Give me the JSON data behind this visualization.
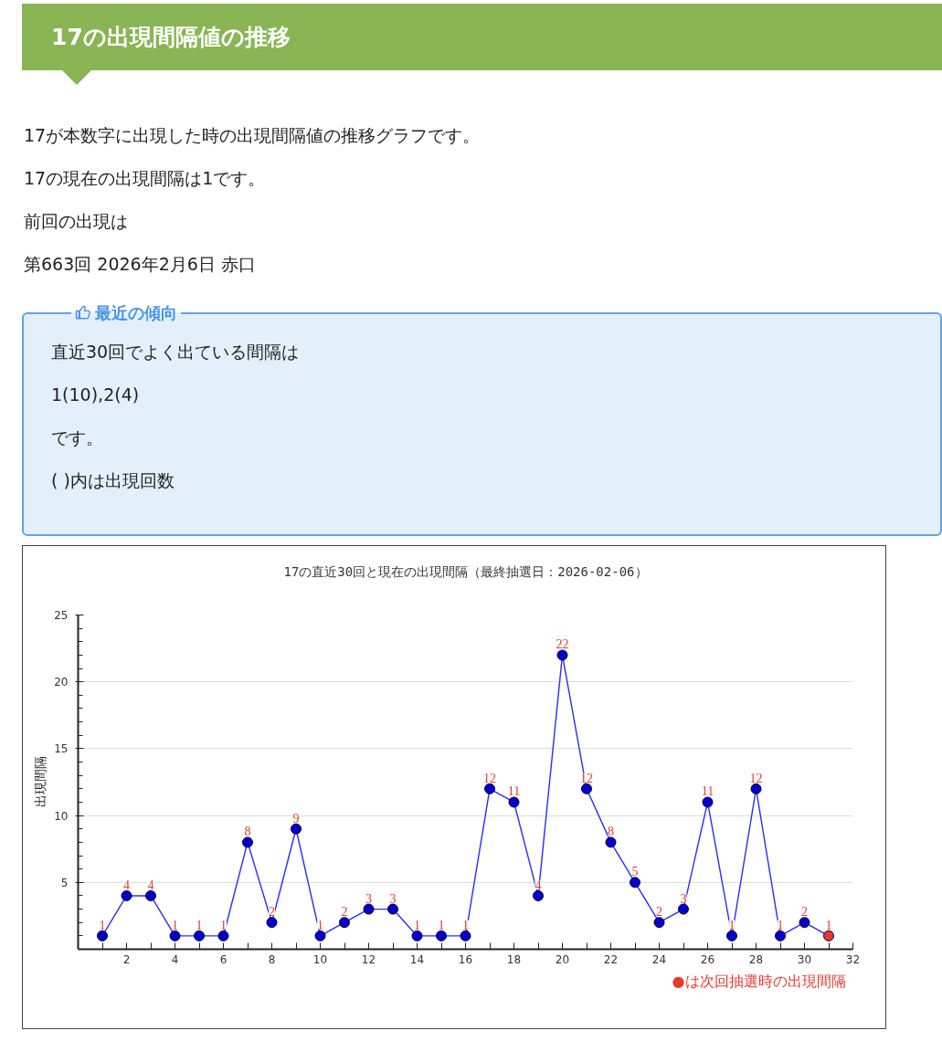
{
  "chart_data": [
    {
      "type": "other",
      "title": "17の出現間隔値の推移",
      "annotations": [
        "17が本数字に出現した時の出現間隔値の推移グラフです。",
        "17の現在の出現間隔は1です。",
        "前回の出現は",
        "第663回 2026年2月6日 赤口"
      ]
    },
    {
      "type": "other",
      "title": "最近の傾向",
      "annotations": [
        "直近30回でよく出ている間隔は",
        "1(10),2(4)",
        "です。",
        "( )内は出現回数"
      ]
    },
    {
      "type": "line",
      "title": "17の直近30回と現在の出現間隔（最終抽選日：2026-02-06）",
      "ylabel": "出現間隔",
      "x": [
        1,
        2,
        3,
        4,
        5,
        6,
        7,
        8,
        9,
        10,
        11,
        12,
        13,
        14,
        15,
        16,
        17,
        18,
        19,
        20,
        21,
        22,
        23,
        24,
        25,
        26,
        27,
        28,
        29,
        30,
        31
      ],
      "series": [
        {
          "color": "#2b2bff",
          "colors": [
            "#0000cc",
            "#0000cc",
            "#0000cc",
            "#0000cc",
            "#0000cc",
            "#0000cc",
            "#0000cc",
            "#0000cc",
            "#0000cc",
            "#0000cc",
            "#0000cc",
            "#0000cc",
            "#0000cc",
            "#0000cc",
            "#0000cc",
            "#0000cc",
            "#0000cc",
            "#0000cc",
            "#0000cc",
            "#0000cc",
            "#0000cc",
            "#0000cc",
            "#0000cc",
            "#0000cc",
            "#0000cc",
            "#0000cc",
            "#0000cc",
            "#0000cc",
            "#0000cc",
            "#0000cc",
            "#e8392c"
          ],
          "values": [
            1,
            4,
            4,
            1,
            1,
            1,
            8,
            2,
            9,
            1,
            2,
            3,
            3,
            1,
            1,
            1,
            12,
            11,
            4,
            22,
            12,
            8,
            5,
            2,
            3,
            11,
            1,
            12,
            1,
            2,
            1
          ]
        }
      ],
      "xlim": [
        0,
        32
      ],
      "xticks": [
        {
          "value": 1,
          "label": null
        },
        2,
        {
          "value": 3,
          "label": null
        },
        4,
        {
          "value": 5,
          "label": null
        },
        6,
        {
          "value": 7,
          "label": null
        },
        8,
        {
          "value": 9,
          "label": null
        },
        10,
        {
          "value": 11,
          "label": null
        },
        12,
        {
          "value": 13,
          "label": null
        },
        14,
        {
          "value": 15,
          "label": null
        },
        16,
        {
          "value": 17,
          "label": null
        },
        18,
        {
          "value": 19,
          "label": null
        },
        20,
        {
          "value": 21,
          "label": null
        },
        22,
        {
          "value": 23,
          "label": null
        },
        24,
        {
          "value": 25,
          "label": null
        },
        26,
        {
          "value": 27,
          "label": null
        },
        28,
        {
          "value": 29,
          "label": null
        },
        30,
        {
          "value": 31,
          "label": null
        },
        32
      ],
      "ylim": [
        0,
        25
      ],
      "yticks": [
        {
          "value": 1,
          "label": null
        },
        {
          "value": 2,
          "label": null
        },
        {
          "value": 3,
          "label": null
        },
        {
          "value": 4,
          "label": null
        },
        5,
        {
          "value": 6,
          "label": null
        },
        {
          "value": 7,
          "label": null
        },
        {
          "value": 8,
          "label": null
        },
        {
          "value": 9,
          "label": null
        },
        10,
        {
          "value": 11,
          "label": null
        },
        {
          "value": 12,
          "label": null
        },
        {
          "value": 13,
          "label": null
        },
        {
          "value": 14,
          "label": null
        },
        15,
        {
          "value": 16,
          "label": null
        },
        {
          "value": 17,
          "label": null
        },
        {
          "value": 18,
          "label": null
        },
        {
          "value": 19,
          "label": null
        },
        20,
        {
          "value": 21,
          "label": null
        },
        {
          "value": 22,
          "label": null
        },
        {
          "value": 23,
          "label": null
        },
        {
          "value": 24,
          "label": null
        },
        25
      ],
      "grid": "y",
      "marker": "circle",
      "line_style": "solid",
      "data_labels": true,
      "annotations": [
        "●は次回抽選時の出現間隔"
      ]
    }
  ]
}
